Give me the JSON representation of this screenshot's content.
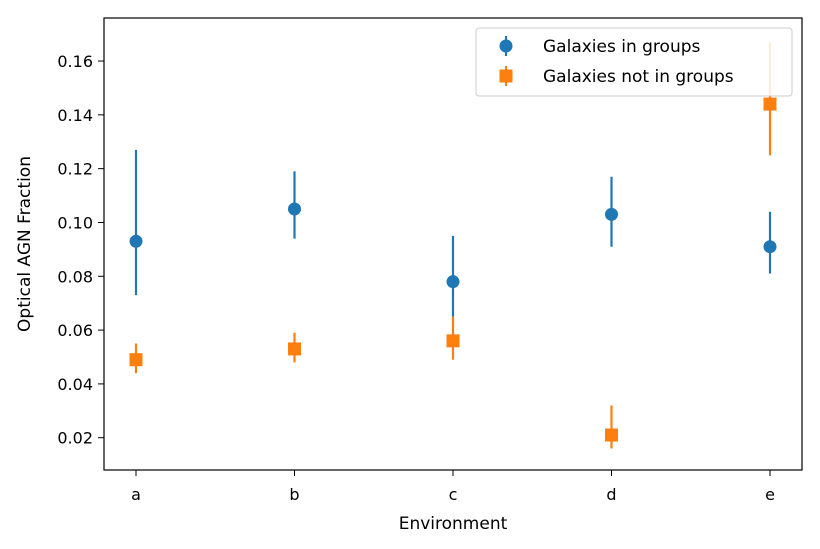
{
  "chart_data": {
    "type": "scatter",
    "title": "",
    "xlabel": "Environment",
    "ylabel": "Optical AGN Fraction",
    "categories": [
      "a",
      "b",
      "c",
      "d",
      "e"
    ],
    "ylim": [
      0.008,
      0.176
    ],
    "yticks": [
      0.02,
      0.04,
      0.06,
      0.08,
      0.1,
      0.12,
      0.14,
      0.16
    ],
    "ytick_labels": [
      "0.02",
      "0.04",
      "0.06",
      "0.08",
      "0.10",
      "0.12",
      "0.14",
      "0.16"
    ],
    "grid": false,
    "legend_position": "top-right",
    "series": [
      {
        "name": "Galaxies in groups",
        "marker": "circle",
        "color": "#1f77b4",
        "values": [
          0.093,
          0.105,
          0.078,
          0.103,
          0.091
        ],
        "err_low": [
          0.073,
          0.094,
          0.065,
          0.091,
          0.081
        ],
        "err_high": [
          0.127,
          0.119,
          0.095,
          0.117,
          0.104
        ]
      },
      {
        "name": "Galaxies not in groups",
        "marker": "square",
        "color": "#ff7f0e",
        "values": [
          0.049,
          0.053,
          0.056,
          0.021,
          0.144
        ],
        "err_low": [
          0.044,
          0.048,
          0.049,
          0.016,
          0.125
        ],
        "err_high": [
          0.055,
          0.059,
          0.065,
          0.032,
          0.167
        ]
      }
    ]
  }
}
